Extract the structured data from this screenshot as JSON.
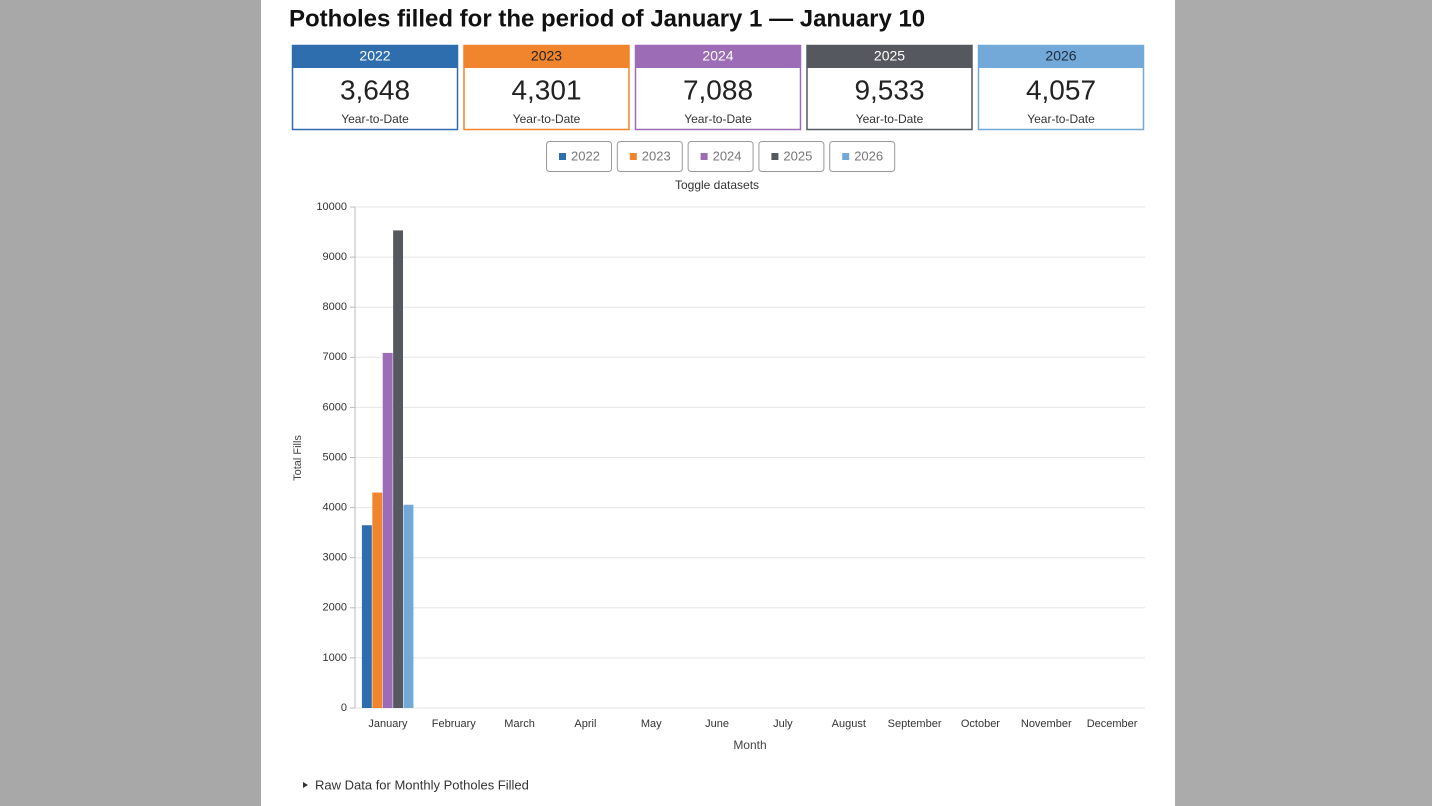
{
  "title": "Potholes filled for the period of January 1 — January 10",
  "cards": [
    {
      "value": "3,648",
      "caption": "Year-to-Date"
    },
    {
      "value": "4,301",
      "caption": "Year-to-Date"
    },
    {
      "value": "7,088",
      "caption": "Year-to-Date"
    },
    {
      "value": "9,533",
      "caption": "Year-to-Date"
    },
    {
      "value": "4,057",
      "caption": "Year-to-Date"
    }
  ],
  "toggle_label": "Toggle datasets",
  "details_label": "Raw Data for Monthly Potholes Filled",
  "chart_data": {
    "type": "bar",
    "y_label": "Total Fills",
    "x_label": "Month",
    "categories": [
      "January",
      "February",
      "March",
      "April",
      "May",
      "June",
      "July",
      "August",
      "September",
      "October",
      "November",
      "December"
    ],
    "series": [
      {
        "name": "2022",
        "color": "#2f6eae",
        "values": [
          3648,
          null,
          null,
          null,
          null,
          null,
          null,
          null,
          null,
          null,
          null,
          null
        ]
      },
      {
        "name": "2023",
        "color": "#f0852d",
        "values": [
          4301,
          null,
          null,
          null,
          null,
          null,
          null,
          null,
          null,
          null,
          null,
          null
        ]
      },
      {
        "name": "2024",
        "color": "#9c6cb6",
        "values": [
          7088,
          null,
          null,
          null,
          null,
          null,
          null,
          null,
          null,
          null,
          null,
          null
        ]
      },
      {
        "name": "2025",
        "color": "#55595f",
        "values": [
          9533,
          null,
          null,
          null,
          null,
          null,
          null,
          null,
          null,
          null,
          null,
          null
        ]
      },
      {
        "name": "2026",
        "color": "#72a9d8",
        "values": [
          4057,
          null,
          null,
          null,
          null,
          null,
          null,
          null,
          null,
          null,
          null,
          null
        ]
      }
    ],
    "ylim": [
      0,
      10000
    ],
    "yticks": [
      0,
      1000,
      2000,
      3000,
      4000,
      5000,
      6000,
      7000,
      8000,
      9000,
      10000
    ],
    "grid": true
  }
}
